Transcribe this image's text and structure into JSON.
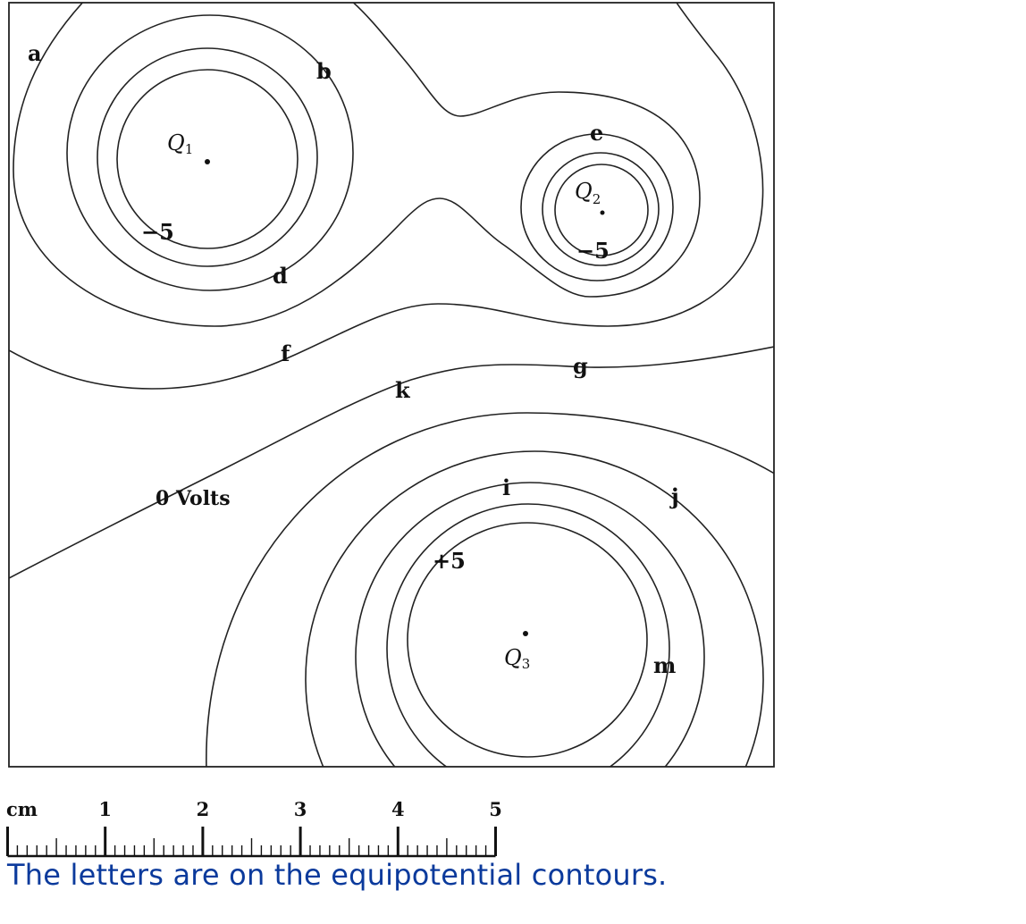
{
  "diagram": {
    "charges": [
      {
        "name": "Q",
        "sub": "1"
      },
      {
        "name": "Q",
        "sub": "2"
      },
      {
        "name": "Q",
        "sub": "3"
      }
    ],
    "contour_letters": [
      "a",
      "b",
      "d",
      "e",
      "f",
      "g",
      "k",
      "i",
      "j",
      "m"
    ],
    "value_labels": {
      "q1_minus": "−5",
      "q2_minus": "−5",
      "q3_plus": "+5",
      "zero": "0 Volts"
    }
  },
  "scale": {
    "unit": "cm",
    "tick_labels": [
      "1",
      "2",
      "3",
      "4",
      "5"
    ],
    "max_cm": 5,
    "subdivisions_per_cm": 10
  },
  "caption": "The letters are on the equipotential contours."
}
